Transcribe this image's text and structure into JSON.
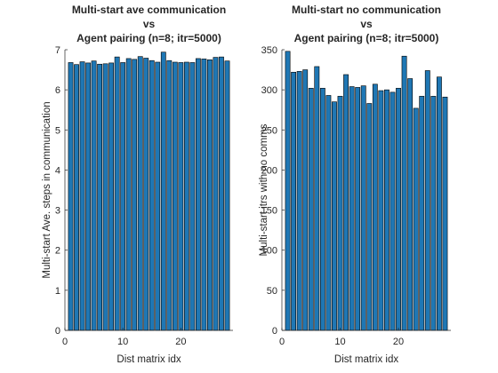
{
  "chart_data": [
    {
      "type": "bar",
      "title": [
        "Multi-start ave communication",
        "vs",
        "Agent pairing (n=8; itr=5000)"
      ],
      "xlabel": "Dist matrix idx",
      "ylabel": "Multi-start Ave. steps in communication",
      "xlim": [
        0,
        29
      ],
      "ylim": [
        0,
        7
      ],
      "xticks": [
        0,
        10,
        20
      ],
      "yticks": [
        0,
        1,
        2,
        3,
        4,
        5,
        6,
        7
      ],
      "bar_color": "#1f77b4",
      "grid": false,
      "x": [
        1,
        2,
        3,
        4,
        5,
        6,
        7,
        8,
        9,
        10,
        11,
        12,
        13,
        14,
        15,
        16,
        17,
        18,
        19,
        20,
        21,
        22,
        23,
        24,
        25,
        26,
        27,
        28
      ],
      "values": [
        6.68,
        6.63,
        6.7,
        6.67,
        6.72,
        6.64,
        6.65,
        6.67,
        6.82,
        6.68,
        6.78,
        6.76,
        6.83,
        6.79,
        6.73,
        6.69,
        6.94,
        6.73,
        6.69,
        6.68,
        6.69,
        6.68,
        6.78,
        6.77,
        6.75,
        6.81,
        6.82,
        6.72
      ]
    },
    {
      "type": "bar",
      "title": [
        "Multi-start no communication",
        "vs",
        "Agent pairing (n=8; itr=5000)"
      ],
      "xlabel": "Dist matrix idx",
      "ylabel": "Multi-start itrs with no comms",
      "xlim": [
        0,
        29
      ],
      "ylim": [
        0,
        350
      ],
      "xticks": [
        0,
        10,
        20
      ],
      "yticks": [
        0,
        50,
        100,
        150,
        200,
        250,
        300,
        350
      ],
      "bar_color": "#1f77b4",
      "grid": false,
      "x": [
        1,
        2,
        3,
        4,
        5,
        6,
        7,
        8,
        9,
        10,
        11,
        12,
        13,
        14,
        15,
        16,
        17,
        18,
        19,
        20,
        21,
        22,
        23,
        24,
        25,
        26,
        27,
        28
      ],
      "values": [
        348,
        322,
        323,
        325,
        302,
        329,
        302,
        293,
        285,
        292,
        319,
        304,
        303,
        305,
        283,
        307,
        299,
        300,
        297,
        302,
        342,
        314,
        277,
        292,
        324,
        292,
        316,
        291
      ]
    }
  ]
}
